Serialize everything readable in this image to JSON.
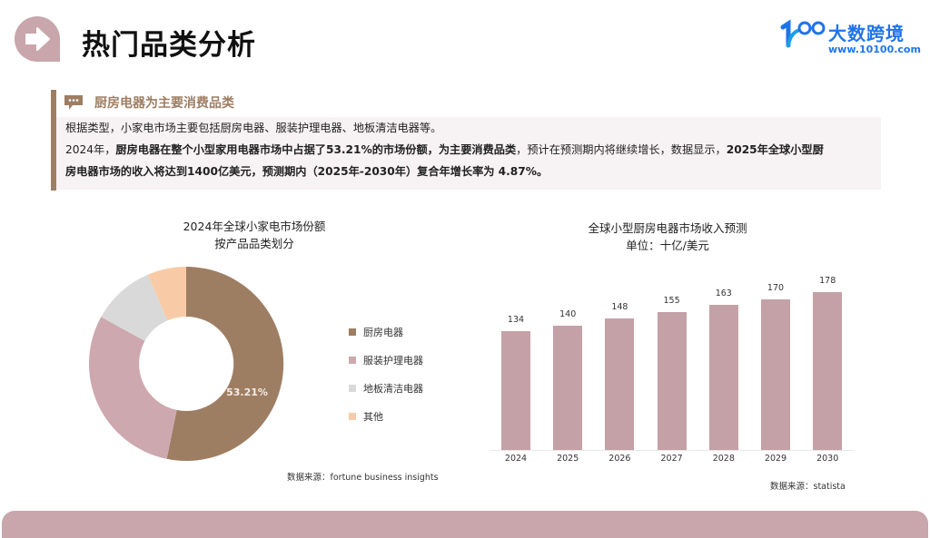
{
  "header": {
    "title": "热门品类分析",
    "title_icon": "arrow-right-icon",
    "logo": {
      "name": "大数跨境",
      "url_text": "www.10100.com",
      "mark": "1OO"
    }
  },
  "section": {
    "icon": "chat-bubble-icon",
    "title": "厨房电器为主要消费品类",
    "line1": "根据类型，小家电市场主要包括厨房电器、服装护理电器、地板清洁电器等。",
    "line2_a": "2024年，",
    "line2_b": "厨房电器在整个小型家用电器市场中占据了53.21%的市场份额，为主要消费品类",
    "line2_c": "，预计在预测期内将继续增长，数据显示，",
    "line2_d": "2025年全球小型厨",
    "line3": "房电器市场的收入将达到1400亿美元，预测期内（2025年-2030年）复合年增长率为 4.87%。"
  },
  "colors": {
    "accent": "#9e7e63",
    "kitchen": "#9e7e63",
    "garment": "#cda8ae",
    "floor": "#d9d9d9",
    "other": "#f8cba6",
    "bar": "#c4a1a6",
    "footer": "#c8a6ab"
  },
  "chart_data": [
    {
      "type": "pie",
      "variant": "donut",
      "title": "2024年全球小家电市场份额",
      "subtitle": "按产品品类划分",
      "categories": [
        "厨房电器",
        "服装护理电器",
        "地板清洁电器",
        "其他"
      ],
      "values": [
        53.21,
        29.8,
        10.5,
        6.49
      ],
      "data_labels": [
        "53.21%",
        "",
        "",
        ""
      ],
      "legend_position": "right",
      "source": "数据来源：fortune business insights"
    },
    {
      "type": "bar",
      "title": "全球小型厨房电器市场收入预测",
      "subtitle": "单位：十亿/美元",
      "categories": [
        "2024",
        "2025",
        "2026",
        "2027",
        "2028",
        "2029",
        "2030"
      ],
      "values": [
        134,
        140,
        148,
        155,
        163,
        170,
        178
      ],
      "xlabel": "",
      "ylabel": "",
      "ylim": [
        0,
        185
      ],
      "grid": false,
      "source": "数据来源：statista"
    }
  ],
  "donut": {
    "title": "2024年全球小家电市场份额",
    "subtitle": "按产品品类划分",
    "label": "53.21%",
    "legend": [
      "厨房电器",
      "服装护理电器",
      "地板清洁电器",
      "其他"
    ],
    "source": "数据来源：fortune business insights"
  },
  "barchart": {
    "title": "全球小型厨房电器市场收入预测",
    "subtitle": "单位：十亿/美元",
    "values": [
      "134",
      "140",
      "148",
      "155",
      "163",
      "170",
      "178"
    ],
    "years": [
      "2024",
      "2025",
      "2026",
      "2027",
      "2028",
      "2029",
      "2030"
    ],
    "source": "数据来源：statista"
  }
}
